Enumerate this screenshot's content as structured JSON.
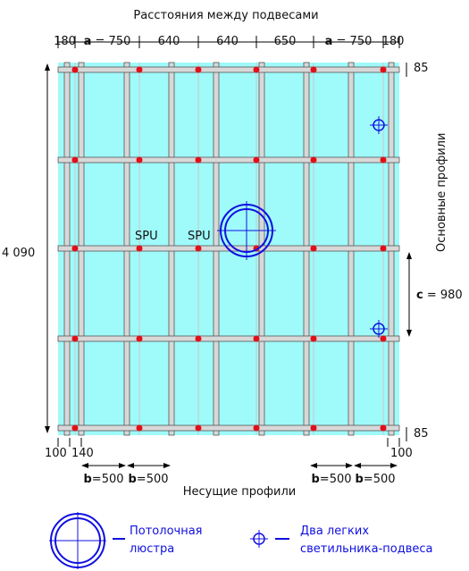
{
  "title": "Расстояния между подвесами",
  "top_dims": [
    {
      "text": "180"
    },
    {
      "letter": "a",
      "text": " = 750"
    },
    {
      "text": "640"
    },
    {
      "text": "640"
    },
    {
      "text": "650"
    },
    {
      "letter": "a",
      "text": " = 750"
    },
    {
      "text": "180"
    }
  ],
  "right_top": "85",
  "right_bottom": "85",
  "left_total": "4 090",
  "main_profiles": "Основные профили",
  "c_dim": {
    "letter": "c",
    "text": " = 980"
  },
  "spu": [
    "SPU",
    "SPU"
  ],
  "bottom_dims": [
    "100",
    "140",
    "100"
  ],
  "b_dims": [
    {
      "letter": "b",
      "text": "=500"
    },
    {
      "letter": "b",
      "text": "=500"
    },
    {
      "letter": "b",
      "text": "=500"
    },
    {
      "letter": "b",
      "text": "=500"
    }
  ],
  "carrying_profiles": "Несущие профили",
  "legend": {
    "chandelier": [
      "Потолочная",
      "люстра"
    ],
    "lamps": [
      "Два легких",
      "светильника-подвеса"
    ]
  }
}
